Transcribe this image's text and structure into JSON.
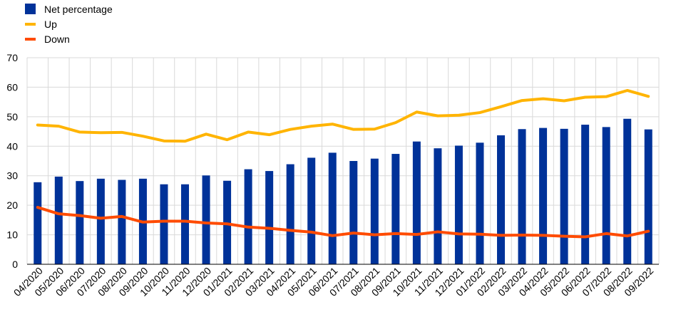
{
  "chart_data": {
    "type": "bar",
    "title": "",
    "xlabel": "",
    "ylabel": "",
    "ylim": [
      0,
      70
    ],
    "yticks": [
      0,
      10,
      20,
      30,
      40,
      50,
      60,
      70
    ],
    "grid": "horizontal and vertical",
    "legend_position": "top-left",
    "categories": [
      "04/2020",
      "05/2020",
      "06/2020",
      "07/2020",
      "08/2020",
      "09/2020",
      "10/2020",
      "11/2020",
      "12/2020",
      "01/2021",
      "02/2021",
      "03/2021",
      "04/2021",
      "05/2021",
      "06/2021",
      "07/2021",
      "08/2021",
      "09/2021",
      "10/2021",
      "11/2021",
      "12/2021",
      "01/2022",
      "02/2022",
      "03/2022",
      "04/2022",
      "05/2022",
      "06/2022",
      "07/2022",
      "08/2022",
      "09/2022"
    ],
    "series": [
      {
        "name": "Net percentage",
        "kind": "bar",
        "color": "#003299",
        "values": [
          27.8,
          29.7,
          28.2,
          29.0,
          28.6,
          29.0,
          27.1,
          27.1,
          30.1,
          28.3,
          32.2,
          31.6,
          33.9,
          36.1,
          37.8,
          35.0,
          35.8,
          37.4,
          41.6,
          39.3,
          40.2,
          41.2,
          43.7,
          45.8,
          46.2,
          45.9,
          47.3,
          46.5,
          49.3,
          45.7
        ]
      },
      {
        "name": "Up",
        "kind": "line",
        "color": "#FFB400",
        "values": [
          47.2,
          46.8,
          44.8,
          44.6,
          44.7,
          43.4,
          41.8,
          41.7,
          44.1,
          42.2,
          44.8,
          43.9,
          45.7,
          46.8,
          47.5,
          45.7,
          45.8,
          48.0,
          51.6,
          50.3,
          50.5,
          51.4,
          53.4,
          55.5,
          56.1,
          55.4,
          56.6,
          56.8,
          58.9,
          56.9
        ]
      },
      {
        "name": "Down",
        "kind": "line",
        "color": "#FF4B00",
        "values": [
          19.3,
          17.1,
          16.5,
          15.6,
          16.2,
          14.3,
          14.6,
          14.6,
          14.0,
          13.7,
          12.6,
          12.2,
          11.5,
          10.9,
          9.7,
          10.6,
          10.0,
          10.4,
          10.1,
          11.0,
          10.3,
          10.2,
          9.8,
          9.9,
          9.8,
          9.5,
          9.3,
          10.4,
          9.6,
          11.2
        ]
      }
    ]
  }
}
